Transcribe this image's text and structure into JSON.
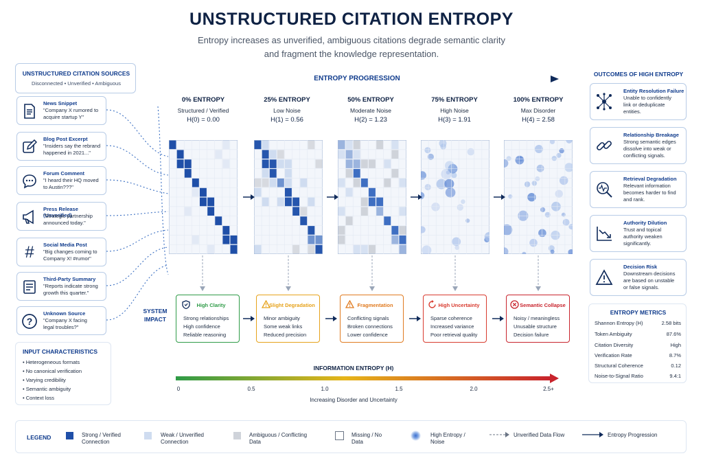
{
  "header": {
    "title": "UNSTRUCTURED CITATION ENTROPY",
    "subtitle1": "Entropy increases as unverified, ambiguous citations degrade semantic clarity",
    "subtitle2": "and fragment the knowledge representation."
  },
  "sources": {
    "title": "UNSTRUCTURED CITATION SOURCES",
    "subtitle": "Disconnected • Unverified • Ambiguous",
    "items": [
      {
        "title": "News Snippet",
        "q1": "\"Company X rumored to",
        "q2": "acquire startup Y\"",
        "icon": "document-icon"
      },
      {
        "title": "Blog Post Excerpt",
        "q1": "\"Insiders say the rebrand",
        "q2": "happened in 2021...\"",
        "icon": "edit-icon"
      },
      {
        "title": "Forum Comment",
        "q1": "\"I heard their HQ moved",
        "q2": "to Austin???\"",
        "icon": "chat-icon"
      },
      {
        "title": "Press Release (Unverified)",
        "q1": "\"Strategic partnership",
        "q2": "announced today.\"",
        "icon": "megaphone-icon"
      },
      {
        "title": "Social Media Post",
        "q1": "\"Big changes coming to",
        "q2": "Company X! #rumor\"",
        "icon": "hashtag-icon"
      },
      {
        "title": "Third-Party Summary",
        "q1": "\"Reports indicate strong",
        "q2": "growth this quarter.\"",
        "icon": "list-icon"
      },
      {
        "title": "Unknown Source",
        "q1": "\"Company X facing",
        "q2": "legal troubles?\"",
        "icon": "question-icon"
      }
    ]
  },
  "progression": {
    "label": "ENTROPY PROGRESSION"
  },
  "stages": [
    {
      "title": "0% ENTROPY",
      "sub": "Structured / Verified",
      "h": "H(0) = 0.00",
      "impact_title": "High Clarity",
      "impact_lines": [
        "Strong relationships",
        "High confidence",
        "Reliable reasoning"
      ],
      "color": "#2e9b47",
      "icon": "shield-icon"
    },
    {
      "title": "25% ENTROPY",
      "sub": "Low Noise",
      "h": "H(1) = 0.56",
      "impact_title": "Slight Degradation",
      "impact_lines": [
        "Minor ambiguity",
        "Some weak links",
        "Reduced precision"
      ],
      "color": "#e6a21a",
      "icon": "warning-icon"
    },
    {
      "title": "50% ENTROPY",
      "sub": "Moderate Noise",
      "h": "H(2) = 1.23",
      "impact_title": "Fragmentation",
      "impact_lines": [
        "Conflicting signals",
        "Broken connections",
        "Lower confidence"
      ],
      "color": "#e07a1f",
      "icon": "warning-icon"
    },
    {
      "title": "75% ENTROPY",
      "sub": "High Noise",
      "h": "H(3) = 1.91",
      "impact_title": "High Uncertainty",
      "impact_lines": [
        "Sparse coherence",
        "Increased variance",
        "Poor retrieval quality"
      ],
      "color": "#d83a2e",
      "icon": "cycle-icon"
    },
    {
      "title": "100% ENTROPY",
      "sub": "Max Disorder",
      "h": "H(4) = 2.58",
      "impact_title": "Semantic Collapse",
      "impact_lines": [
        "Noisy / meaningless",
        "Unusable structure",
        "Decision failure"
      ],
      "color": "#c8232c",
      "icon": "x-circle-icon"
    }
  ],
  "system_impact": {
    "line1": "SYSTEM",
    "line2": "IMPACT"
  },
  "input_characteristics": {
    "title": "INPUT CHARACTERISTICS",
    "items": [
      "Heterogeneous formats",
      "No canonical verification",
      "Varying credibility",
      "Semantic ambiguity",
      "Context loss"
    ]
  },
  "entropy_bar": {
    "title": "INFORMATION ENTROPY (H)",
    "ticks": [
      "0",
      "0.5",
      "1.0",
      "1.5",
      "2.0",
      "2.5+"
    ],
    "caption": "Increasing Disorder and Uncertainty"
  },
  "outcomes": {
    "title": "OUTCOMES OF HIGH ENTROPY",
    "items": [
      {
        "title": "Entity Resolution Failure",
        "lines": [
          "Unable to confidently",
          "link or deduplicate",
          "entities."
        ],
        "icon": "network-icon"
      },
      {
        "title": "Relationship Breakage",
        "lines": [
          "Strong semantic edges",
          "dissolve into weak or",
          "conflicting signals."
        ],
        "icon": "broken-link-icon"
      },
      {
        "title": "Retrieval Degradation",
        "lines": [
          "Relevant information",
          "becomes harder to find",
          "and rank."
        ],
        "icon": "search-pulse-icon"
      },
      {
        "title": "Authority Dilution",
        "lines": [
          "Trust and topical",
          "authority weaken",
          "significantly."
        ],
        "icon": "trend-down-icon"
      },
      {
        "title": "Decision Risk",
        "lines": [
          "Downstream decisions",
          "are based on unstable",
          "or false signals."
        ],
        "icon": "alert-icon"
      }
    ]
  },
  "metrics": {
    "title": "ENTROPY METRICS",
    "rows": [
      {
        "label": "Shannon Entropy (H)",
        "value": "2.58 bits"
      },
      {
        "label": "Token Ambiguity",
        "value": "87.6%"
      },
      {
        "label": "Citation Diversity",
        "value": "High"
      },
      {
        "label": "Verification Rate",
        "value": "8.7%"
      },
      {
        "label": "Structural Coherence",
        "value": "0.12"
      },
      {
        "label": "Noise-to-Signal Ratio",
        "value": "9.4:1"
      }
    ]
  },
  "legend": {
    "title": "LEGEND",
    "items": [
      {
        "l1": "Strong / Verified",
        "l2": "Connection"
      },
      {
        "l1": "Weak / Unverified",
        "l2": "Connection"
      },
      {
        "l1": "Ambiguous / Conflicting",
        "l2": "Data"
      },
      {
        "l1": "Missing / No",
        "l2": "Data"
      },
      {
        "l1": "High Entropy /",
        "l2": "Noise"
      },
      {
        "l1": "Unverified Data Flow",
        "l2": ""
      },
      {
        "l1": "Entropy Progression",
        "l2": ""
      }
    ]
  },
  "colors": {
    "navy": "#0f3b8c",
    "strong": "#1f4fa8",
    "weak": "#cfdcf0",
    "ambiguous": "#cfd3da",
    "gradient_start": "#2e9b47",
    "gradient_mid": "#e6b51a",
    "gradient_end": "#c8232c"
  }
}
